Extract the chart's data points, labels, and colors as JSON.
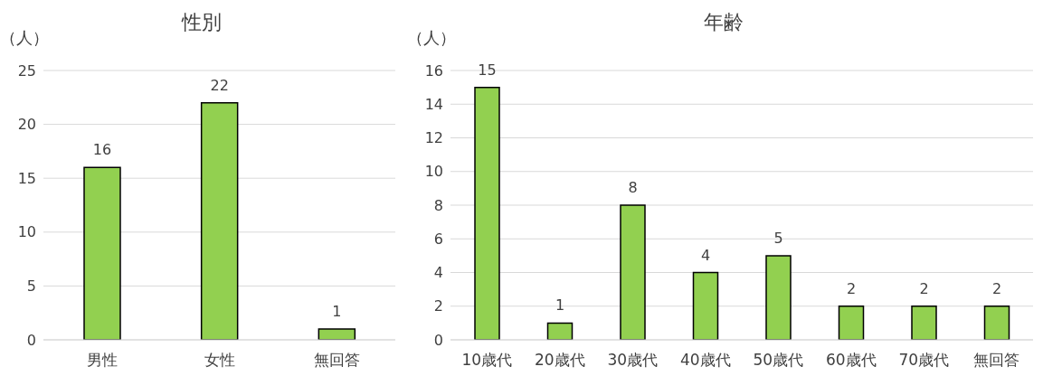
{
  "chart_data": [
    {
      "type": "bar",
      "title": "性別",
      "ylabel": "（人）",
      "categories": [
        "男性",
        "女性",
        "無回答"
      ],
      "values": [
        16,
        22,
        1
      ],
      "color": "#92d050",
      "ylim": [
        0,
        25
      ],
      "yticks": [
        0,
        5,
        10,
        15,
        20,
        25
      ],
      "grid": "y",
      "data_labels": true
    },
    {
      "type": "bar",
      "title": "年齢",
      "ylabel": "（人）",
      "categories": [
        "10歳代",
        "20歳代",
        "30歳代",
        "40歳代",
        "50歳代",
        "60歳代",
        "70歳代",
        "無回答"
      ],
      "values": [
        15,
        1,
        8,
        4,
        5,
        2,
        2,
        2
      ],
      "color": "#92d050",
      "ylim": [
        0,
        16
      ],
      "yticks": [
        0,
        2,
        4,
        6,
        8,
        10,
        12,
        14,
        16
      ],
      "grid": "y",
      "data_labels": true
    }
  ]
}
